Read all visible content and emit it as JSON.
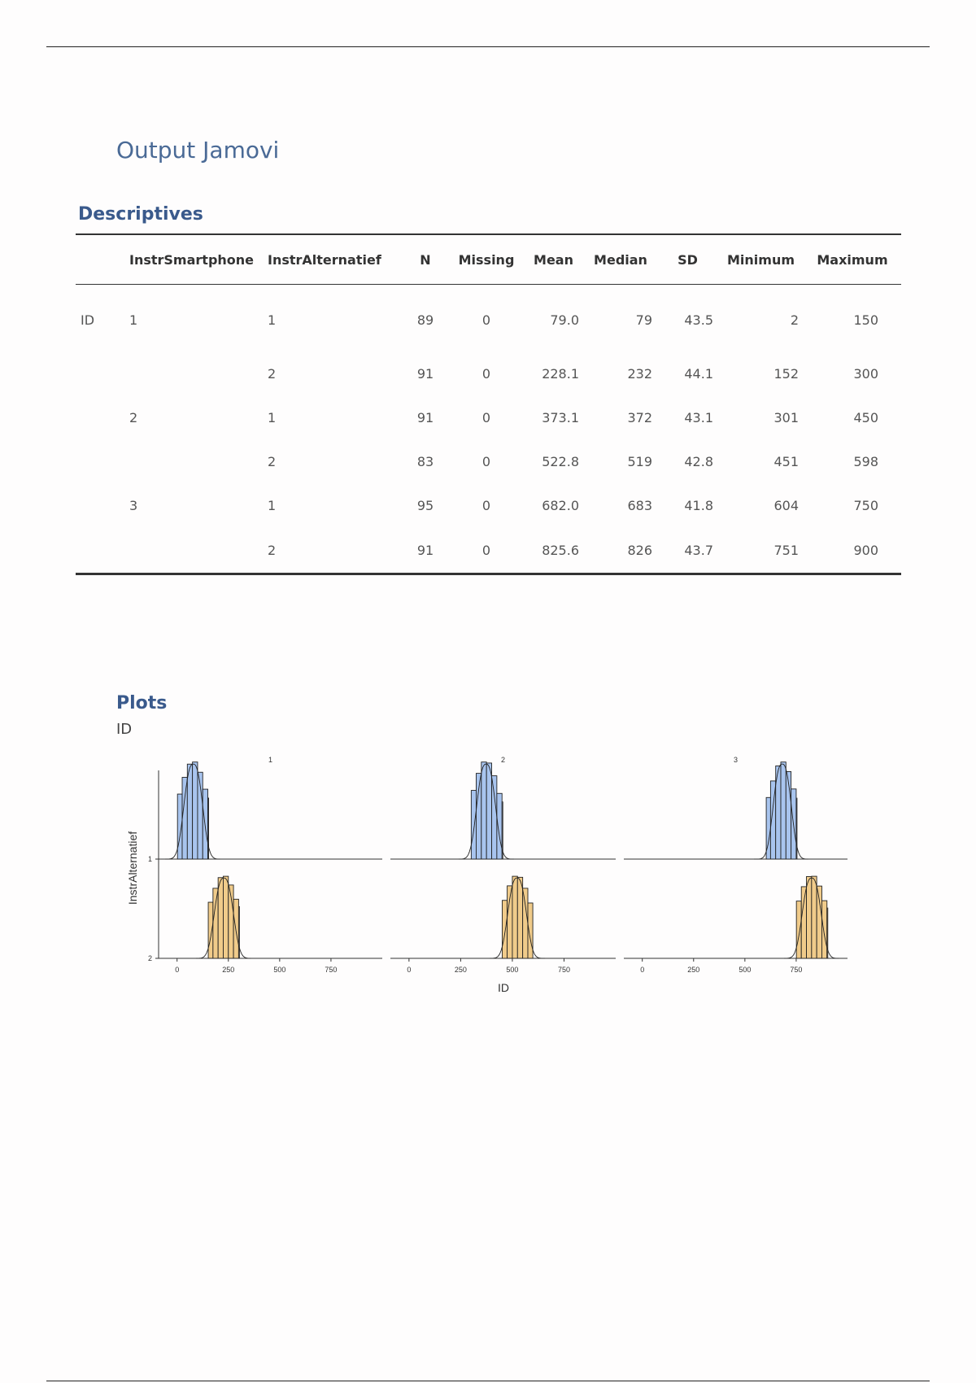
{
  "document": {
    "title": "Output Jamovi"
  },
  "descriptives": {
    "title": "Descriptives",
    "columns": [
      "",
      "InstrSmartphone",
      "InstrAlternatief",
      "N",
      "Missing",
      "Mean",
      "Median",
      "SD",
      "Minimum",
      "Maximum"
    ],
    "rows": [
      {
        "var": "ID",
        "smart": "1",
        "alt": "1",
        "n": "89",
        "missing": "0",
        "mean": "79.0",
        "median": "79",
        "sd": "43.5",
        "min": "2",
        "max": "150"
      },
      {
        "var": "",
        "smart": "",
        "alt": "2",
        "n": "91",
        "missing": "0",
        "mean": "228.1",
        "median": "232",
        "sd": "44.1",
        "min": "152",
        "max": "300"
      },
      {
        "var": "",
        "smart": "2",
        "alt": "1",
        "n": "91",
        "missing": "0",
        "mean": "373.1",
        "median": "372",
        "sd": "43.1",
        "min": "301",
        "max": "450"
      },
      {
        "var": "",
        "smart": "",
        "alt": "2",
        "n": "83",
        "missing": "0",
        "mean": "522.8",
        "median": "519",
        "sd": "42.8",
        "min": "451",
        "max": "598"
      },
      {
        "var": "",
        "smart": "3",
        "alt": "1",
        "n": "95",
        "missing": "0",
        "mean": "682.0",
        "median": "683",
        "sd": "41.8",
        "min": "604",
        "max": "750"
      },
      {
        "var": "",
        "smart": "",
        "alt": "2",
        "n": "91",
        "missing": "0",
        "mean": "825.6",
        "median": "826",
        "sd": "43.7",
        "min": "751",
        "max": "900"
      }
    ]
  },
  "plots": {
    "title": "Plots",
    "subtitle": "ID"
  },
  "chart_data": {
    "type": "area",
    "facet_labels": [
      "1",
      "2",
      "3"
    ],
    "row_labels": [
      "1",
      "2"
    ],
    "x_ticks": [
      0,
      250,
      500,
      750
    ],
    "xlim": [
      -90,
      1000
    ],
    "xlabel": "ID",
    "ylabel": "InstrAlternatief",
    "colors": {
      "1": "#a8c4ee",
      "2": "#f0cb8a"
    },
    "series": [
      {
        "facet": "1",
        "row": "1",
        "min": 2,
        "max": 150,
        "mean": 79.0,
        "sd": 43.5
      },
      {
        "facet": "1",
        "row": "2",
        "min": 152,
        "max": 300,
        "mean": 228.1,
        "sd": 44.1
      },
      {
        "facet": "2",
        "row": "1",
        "min": 301,
        "max": 450,
        "mean": 373.1,
        "sd": 43.1
      },
      {
        "facet": "2",
        "row": "2",
        "min": 451,
        "max": 598,
        "mean": 522.8,
        "sd": 42.8
      },
      {
        "facet": "3",
        "row": "1",
        "min": 604,
        "max": 750,
        "mean": 682.0,
        "sd": 41.8
      },
      {
        "facet": "3",
        "row": "2",
        "min": 751,
        "max": 900,
        "mean": 825.6,
        "sd": 43.7
      }
    ]
  }
}
